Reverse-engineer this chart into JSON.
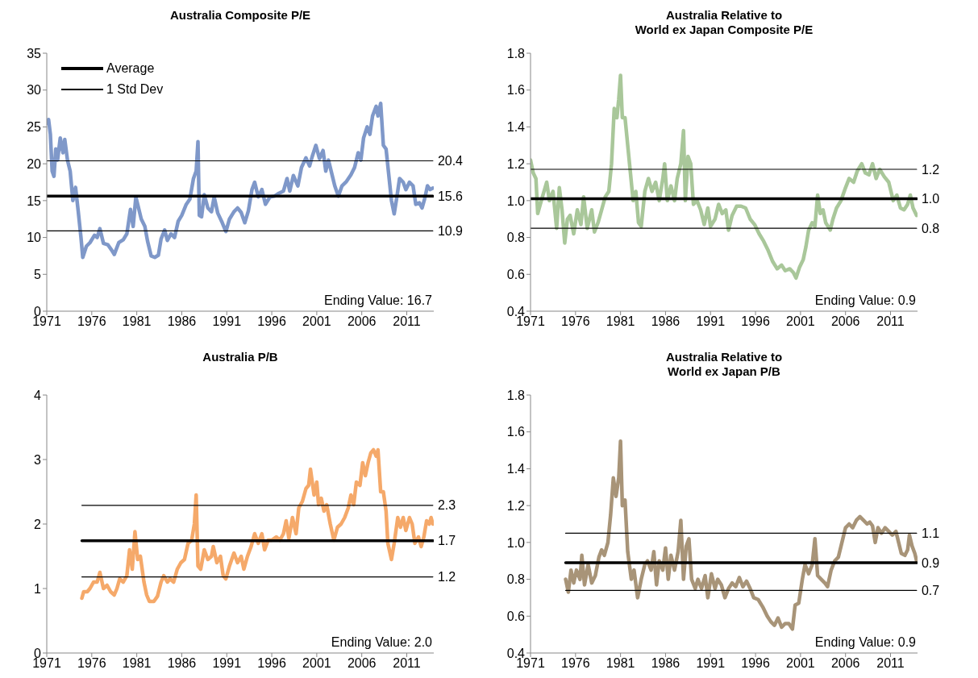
{
  "chart_data": [
    {
      "type": "line",
      "title": "Australia Composite P/E",
      "xlim": [
        1971,
        2014
      ],
      "xticks": [
        1971,
        1976,
        1981,
        1986,
        1991,
        1996,
        2001,
        2006,
        2011
      ],
      "ylim": [
        0,
        35
      ],
      "yticks": [
        0,
        5,
        10,
        15,
        20,
        25,
        30,
        35
      ],
      "legend": "top left",
      "annotations": [
        "Ending Value: 16.7"
      ],
      "series": [
        {
          "color": "#7f98c9",
          "x": [
            1971.0,
            1971.2,
            1971.4,
            1971.6,
            1971.8,
            1972.0,
            1972.2,
            1972.5,
            1972.8,
            1973.0,
            1973.3,
            1973.6,
            1973.9,
            1974.2,
            1974.5,
            1974.8,
            1975.0,
            1975.4,
            1975.8,
            1976.3,
            1976.6,
            1976.9,
            1977.3,
            1977.8,
            1978.2,
            1978.5,
            1979.0,
            1979.5,
            1979.9,
            1980.3,
            1980.6,
            1980.9,
            1981.2,
            1981.5,
            1981.9,
            1982.2,
            1982.6,
            1983.0,
            1983.4,
            1983.7,
            1984.1,
            1984.4,
            1984.8,
            1985.2,
            1985.6,
            1986.0,
            1986.5,
            1986.9,
            1987.3,
            1987.6,
            1987.8,
            1987.95,
            1988.2,
            1988.5,
            1988.9,
            1989.3,
            1989.6,
            1990.0,
            1990.5,
            1990.9,
            1991.3,
            1991.8,
            1992.2,
            1992.6,
            1993.0,
            1993.4,
            1993.8,
            1994.1,
            1994.5,
            1994.9,
            1995.3,
            1995.8,
            1996.3,
            1996.8,
            1997.3,
            1997.7,
            1998.0,
            1998.4,
            1998.9,
            1999.3,
            1999.8,
            2000.2,
            2000.5,
            2000.9,
            2001.3,
            2001.7,
            2002.0,
            2002.3,
            2002.7,
            2003.0,
            2003.4,
            2003.8,
            2004.3,
            2004.8,
            2005.2,
            2005.6,
            2005.9,
            2006.2,
            2006.6,
            2006.9,
            2007.2,
            2007.6,
            2007.8,
            2008.1,
            2008.4,
            2008.7,
            2009.0,
            2009.3,
            2009.6,
            2009.9,
            2010.2,
            2010.6,
            2010.9,
            2011.3,
            2011.7,
            2012.0,
            2012.4,
            2012.7,
            2013.0,
            2013.3,
            2013.6,
            2013.9
          ],
          "values": [
            25.5,
            26,
            24,
            19,
            18.3,
            22,
            20.5,
            23.5,
            21.5,
            23.3,
            20.5,
            19,
            15,
            16.8,
            13.5,
            10,
            7.3,
            8.8,
            9.3,
            10.3,
            10,
            11.2,
            9.2,
            9,
            8.3,
            7.7,
            9.3,
            9.7,
            10.5,
            13.8,
            11.5,
            15.5,
            14,
            12.5,
            11.5,
            9.5,
            7.5,
            7.3,
            7.6,
            9.8,
            11,
            9.6,
            10.5,
            10,
            12.2,
            13,
            14.5,
            15.2,
            18,
            19,
            23,
            13,
            12.8,
            15.8,
            14,
            13.5,
            15.5,
            13.3,
            12,
            10.8,
            12.5,
            13.5,
            14,
            13.4,
            12,
            13.6,
            16.5,
            17.5,
            15.5,
            16.5,
            14.5,
            15.5,
            15.6,
            16,
            16.3,
            18,
            16.3,
            18.4,
            17,
            19.5,
            20.8,
            19.7,
            21,
            22.5,
            20.7,
            21.8,
            19,
            20.5,
            18.5,
            17,
            15.6,
            17,
            17.6,
            18.5,
            19.5,
            21.5,
            20.5,
            23.5,
            25,
            24,
            26.5,
            27.8,
            26.5,
            28.2,
            22.5,
            22,
            18.5,
            15,
            13.2,
            15.5,
            18,
            17.5,
            16.5,
            17.5,
            17,
            14.5,
            14.7,
            14,
            15.3,
            17,
            16.5,
            16.7
          ]
        },
        {
          "name": "Average",
          "color": "#000000",
          "x": [
            1971,
            2013.9
          ],
          "values": [
            15.6,
            15.6
          ],
          "value_labels": [
            null,
            "15.6"
          ]
        },
        {
          "name": "1 Std Dev",
          "color": "#000000",
          "x": [
            1971,
            2013.9
          ],
          "values": [
            20.4,
            20.4
          ],
          "value_labels": [
            null,
            "20.4"
          ]
        },
        {
          "color": "#000000",
          "x": [
            1971,
            2013.9
          ],
          "values": [
            10.9,
            10.9
          ],
          "value_labels": [
            null,
            "10.9"
          ]
        }
      ]
    },
    {
      "type": "line",
      "title": "Australia Relative to\nWorld ex Japan Composite P/E",
      "xlim": [
        1971,
        2014
      ],
      "xticks": [
        1971,
        1976,
        1981,
        1986,
        1991,
        1996,
        2001,
        2006,
        2011
      ],
      "ylim": [
        0.4,
        1.8
      ],
      "yticks": [
        {
          "value": 0.4,
          "label": "0.4"
        },
        {
          "value": 0.6,
          "label": "0.6"
        },
        {
          "value": 0.8,
          "label": "0.8"
        },
        {
          "value": 1.0,
          "label": "1.0"
        },
        {
          "value": 1.2,
          "label": "1.2"
        },
        {
          "value": 1.4,
          "label": "1.4"
        },
        {
          "value": 1.6,
          "label": "1.6"
        },
        {
          "value": 1.8,
          "label": "1.8"
        }
      ],
      "annotations": [
        "Ending Value: 0.9"
      ],
      "series": [
        {
          "color": "#a9c79a",
          "x": [
            1971.0,
            1971.3,
            1971.6,
            1971.8,
            1972.2,
            1972.5,
            1972.8,
            1973.1,
            1973.5,
            1973.9,
            1974.2,
            1974.5,
            1974.8,
            1975.1,
            1975.4,
            1975.8,
            1976.2,
            1976.6,
            1976.9,
            1977.3,
            1977.8,
            1978.1,
            1978.5,
            1978.9,
            1979.3,
            1979.7,
            1980.0,
            1980.3,
            1980.6,
            1980.8,
            1981.0,
            1981.2,
            1981.5,
            1981.8,
            1982.1,
            1982.4,
            1982.7,
            1983.0,
            1983.3,
            1983.7,
            1984.1,
            1984.5,
            1984.9,
            1985.3,
            1985.7,
            1985.9,
            1986.2,
            1986.6,
            1987.0,
            1987.3,
            1987.7,
            1988.0,
            1988.2,
            1988.5,
            1988.8,
            1989.1,
            1989.5,
            1989.9,
            1990.3,
            1990.7,
            1991.0,
            1991.5,
            1991.9,
            1992.3,
            1992.7,
            1993.0,
            1993.4,
            1993.9,
            1994.4,
            1994.9,
            1995.4,
            1995.9,
            1996.4,
            1996.9,
            1997.4,
            1997.9,
            1998.4,
            1998.9,
            1999.3,
            1999.8,
            2000.2,
            2000.5,
            2000.9,
            2001.3,
            2001.6,
            2001.9,
            2002.3,
            2002.6,
            2002.9,
            2003.2,
            2003.5,
            2003.8,
            2004.3,
            2004.6,
            2005.0,
            2005.5,
            2006.0,
            2006.4,
            2006.9,
            2007.3,
            2007.8,
            2008.2,
            2008.6,
            2009.0,
            2009.4,
            2009.8,
            2010.3,
            2010.8,
            2011.3,
            2011.7,
            2012.1,
            2012.5,
            2012.9,
            2013.2,
            2013.5,
            2013.9
          ],
          "values": [
            1.22,
            1.15,
            1.12,
            0.93,
            1.0,
            1.05,
            1.1,
            1.0,
            1.05,
            0.85,
            1.07,
            0.95,
            0.77,
            0.9,
            0.92,
            0.82,
            0.95,
            0.87,
            1.02,
            0.85,
            0.95,
            0.83,
            0.88,
            0.95,
            1.02,
            1.05,
            1.2,
            1.5,
            1.45,
            1.55,
            1.68,
            1.45,
            1.45,
            1.3,
            1.15,
            1.0,
            1.05,
            0.88,
            0.86,
            1.05,
            1.12,
            1.05,
            1.1,
            1.0,
            1.12,
            1.2,
            1.0,
            1.08,
            1.0,
            1.12,
            1.2,
            1.38,
            1.0,
            1.24,
            1.2,
            0.98,
            1.0,
            0.95,
            0.87,
            0.96,
            0.86,
            0.9,
            0.98,
            0.93,
            0.95,
            0.84,
            0.92,
            0.97,
            0.97,
            0.96,
            0.9,
            0.87,
            0.82,
            0.78,
            0.73,
            0.67,
            0.63,
            0.65,
            0.62,
            0.63,
            0.61,
            0.58,
            0.64,
            0.68,
            0.75,
            0.84,
            0.88,
            0.86,
            1.03,
            0.93,
            0.95,
            0.88,
            0.84,
            0.9,
            0.96,
            1.0,
            1.07,
            1.12,
            1.1,
            1.16,
            1.2,
            1.15,
            1.14,
            1.2,
            1.12,
            1.17,
            1.13,
            1.1,
            1.0,
            1.03,
            0.96,
            0.95,
            0.98,
            1.03,
            0.96,
            0.92
          ]
        },
        {
          "color": "#000000",
          "x": [
            1971,
            2013.9
          ],
          "values": [
            1.01,
            1.01
          ],
          "value_labels": [
            null,
            "1.0"
          ]
        },
        {
          "color": "#000000",
          "x": [
            1971,
            2013.9
          ],
          "values": [
            1.17,
            1.17
          ],
          "value_labels": [
            null,
            "1.2"
          ]
        },
        {
          "color": "#000000",
          "x": [
            1971,
            2013.9
          ],
          "values": [
            0.85,
            0.85
          ],
          "value_labels": [
            null,
            "0.8"
          ]
        }
      ]
    },
    {
      "type": "line",
      "title": "Australia P/B",
      "xlim": [
        1971,
        2014
      ],
      "xticks": [
        1971,
        1976,
        1981,
        1986,
        1991,
        1996,
        2001,
        2006,
        2011
      ],
      "ylim": [
        0,
        4
      ],
      "yticks": [
        0,
        1,
        2,
        3,
        4
      ],
      "annotations": [
        "Ending Value: 2.0"
      ],
      "series": [
        {
          "color": "#f5a96a",
          "x": [
            1974.9,
            1975.1,
            1975.5,
            1975.8,
            1976.2,
            1976.6,
            1976.9,
            1977.3,
            1977.7,
            1978.1,
            1978.5,
            1978.8,
            1979.1,
            1979.5,
            1979.9,
            1980.2,
            1980.5,
            1980.8,
            1981.1,
            1981.4,
            1981.8,
            1982.1,
            1982.4,
            1982.9,
            1983.3,
            1983.7,
            1984.0,
            1984.4,
            1984.7,
            1985.1,
            1985.5,
            1985.9,
            1986.3,
            1986.7,
            1987.1,
            1987.4,
            1987.6,
            1987.8,
            1988.1,
            1988.5,
            1988.9,
            1989.3,
            1989.5,
            1989.9,
            1990.3,
            1990.6,
            1990.9,
            1991.3,
            1991.8,
            1992.2,
            1992.6,
            1992.9,
            1993.3,
            1993.7,
            1994.1,
            1994.5,
            1994.9,
            1995.2,
            1995.6,
            1996.0,
            1996.5,
            1996.9,
            1997.3,
            1997.6,
            1997.9,
            1998.3,
            1998.7,
            1999.0,
            1999.4,
            1999.8,
            2000.1,
            2000.3,
            2000.7,
            2001.0,
            2001.2,
            2001.5,
            2001.8,
            2002.1,
            2002.5,
            2002.9,
            2003.3,
            2003.7,
            2004.1,
            2004.5,
            2004.8,
            2005.1,
            2005.4,
            2005.8,
            2006.1,
            2006.4,
            2006.7,
            2007.0,
            2007.3,
            2007.6,
            2007.8,
            2008.1,
            2008.4,
            2008.7,
            2008.9,
            2009.3,
            2009.6,
            2010.0,
            2010.3,
            2010.6,
            2010.9,
            2011.3,
            2011.6,
            2011.9,
            2012.3,
            2012.6,
            2012.9,
            2013.2,
            2013.5,
            2013.7,
            2013.9
          ],
          "values": [
            0.85,
            0.95,
            0.95,
            1.0,
            1.1,
            1.1,
            1.25,
            1.0,
            1.05,
            0.95,
            0.9,
            1.0,
            1.15,
            1.1,
            1.2,
            1.6,
            1.3,
            1.88,
            1.45,
            1.5,
            1.1,
            0.9,
            0.8,
            0.8,
            0.88,
            1.1,
            1.2,
            1.1,
            1.15,
            1.1,
            1.3,
            1.4,
            1.45,
            1.7,
            1.75,
            2.0,
            2.45,
            1.35,
            1.3,
            1.6,
            1.45,
            1.5,
            1.65,
            1.4,
            1.5,
            1.2,
            1.15,
            1.35,
            1.55,
            1.4,
            1.5,
            1.3,
            1.5,
            1.65,
            1.85,
            1.7,
            1.85,
            1.6,
            1.75,
            1.75,
            1.8,
            1.75,
            1.85,
            2.05,
            1.78,
            2.1,
            1.85,
            2.25,
            2.35,
            2.55,
            2.6,
            2.85,
            2.45,
            2.65,
            2.3,
            2.4,
            2.2,
            2.3,
            2.0,
            1.75,
            1.95,
            2.0,
            2.1,
            2.25,
            2.45,
            2.3,
            2.65,
            2.6,
            2.95,
            2.75,
            2.95,
            3.1,
            3.15,
            3.05,
            3.15,
            2.5,
            2.5,
            2.2,
            1.7,
            1.45,
            1.7,
            2.1,
            1.95,
            2.1,
            1.9,
            2.1,
            2.0,
            1.7,
            1.8,
            1.65,
            1.8,
            2.05,
            2.0,
            2.1,
            2.0
          ]
        },
        {
          "color": "#000000",
          "x": [
            1974.9,
            2013.9
          ],
          "values": [
            1.74,
            1.74
          ],
          "value_labels": [
            null,
            "1.7"
          ]
        },
        {
          "color": "#000000",
          "x": [
            1974.9,
            2013.9
          ],
          "values": [
            2.29,
            2.29
          ],
          "value_labels": [
            null,
            "2.3"
          ]
        },
        {
          "color": "#000000",
          "x": [
            1974.9,
            2013.9
          ],
          "values": [
            1.18,
            1.18
          ],
          "value_labels": [
            null,
            "1.2"
          ]
        }
      ]
    },
    {
      "type": "line",
      "title": "Australia Relative to\nWorld ex Japan P/B",
      "xlim": [
        1971,
        2014
      ],
      "xticks": [
        1971,
        1976,
        1981,
        1986,
        1991,
        1996,
        2001,
        2006,
        2011
      ],
      "ylim": [
        0.4,
        1.8
      ],
      "yticks": [
        {
          "value": 0.4,
          "label": "0.4"
        },
        {
          "value": 0.6,
          "label": "0.6"
        },
        {
          "value": 0.8,
          "label": "0.8"
        },
        {
          "value": 1.0,
          "label": "1.0"
        },
        {
          "value": 1.2,
          "label": "1.2"
        },
        {
          "value": 1.4,
          "label": "1.4"
        },
        {
          "value": 1.6,
          "label": "1.6"
        },
        {
          "value": 1.8,
          "label": "1.8"
        }
      ],
      "annotations": [
        "Ending Value: 0.9"
      ],
      "series": [
        {
          "color": "#a89478",
          "x": [
            1974.9,
            1975.2,
            1975.5,
            1975.8,
            1976.1,
            1976.5,
            1976.7,
            1977.0,
            1977.4,
            1977.8,
            1978.2,
            1978.6,
            1978.9,
            1979.2,
            1979.6,
            1979.9,
            1980.2,
            1980.5,
            1980.8,
            1981.0,
            1981.2,
            1981.5,
            1981.8,
            1982.2,
            1982.5,
            1982.9,
            1983.3,
            1983.7,
            1984.0,
            1984.4,
            1984.7,
            1985.0,
            1985.3,
            1985.7,
            1986.0,
            1986.3,
            1986.6,
            1987.0,
            1987.4,
            1987.7,
            1988.0,
            1988.3,
            1988.6,
            1988.9,
            1989.3,
            1989.6,
            1990.0,
            1990.4,
            1990.7,
            1991.1,
            1991.5,
            1991.8,
            1992.2,
            1992.6,
            1993.0,
            1993.4,
            1993.8,
            1994.2,
            1994.6,
            1995.0,
            1995.4,
            1995.8,
            1996.3,
            1996.8,
            1997.3,
            1997.7,
            1998.1,
            1998.5,
            1998.9,
            1999.3,
            1999.7,
            2000.1,
            2000.4,
            2000.8,
            2001.2,
            2001.5,
            2001.9,
            2002.3,
            2002.6,
            2002.9,
            2003.3,
            2003.7,
            2004.0,
            2004.4,
            2004.8,
            2005.2,
            2005.6,
            2006.0,
            2006.4,
            2006.8,
            2007.2,
            2007.6,
            2008.0,
            2008.4,
            2008.7,
            2009.0,
            2009.3,
            2009.6,
            2010.0,
            2010.4,
            2010.8,
            2011.2,
            2011.6,
            2011.9,
            2012.2,
            2012.6,
            2012.9,
            2013.1,
            2013.4,
            2013.7,
            2013.9
          ],
          "values": [
            0.8,
            0.73,
            0.85,
            0.78,
            0.85,
            0.8,
            0.93,
            0.77,
            0.88,
            0.78,
            0.82,
            0.92,
            0.96,
            0.93,
            1.0,
            1.15,
            1.35,
            1.25,
            1.35,
            1.55,
            1.2,
            1.23,
            0.95,
            0.8,
            0.85,
            0.7,
            0.8,
            0.88,
            0.9,
            0.85,
            0.95,
            0.77,
            0.9,
            0.85,
            0.97,
            0.8,
            0.93,
            0.85,
            0.95,
            1.12,
            0.8,
            0.98,
            1.02,
            0.8,
            0.75,
            0.8,
            0.75,
            0.82,
            0.7,
            0.83,
            0.75,
            0.8,
            0.77,
            0.7,
            0.75,
            0.78,
            0.76,
            0.81,
            0.76,
            0.79,
            0.75,
            0.7,
            0.69,
            0.65,
            0.6,
            0.57,
            0.55,
            0.59,
            0.54,
            0.56,
            0.56,
            0.53,
            0.66,
            0.67,
            0.8,
            0.88,
            0.83,
            0.88,
            1.02,
            0.82,
            0.8,
            0.78,
            0.76,
            0.85,
            0.9,
            0.92,
            1.0,
            1.08,
            1.1,
            1.08,
            1.12,
            1.14,
            1.12,
            1.1,
            1.11,
            1.09,
            1.0,
            1.08,
            1.05,
            1.08,
            1.06,
            1.04,
            1.06,
            1.0,
            0.94,
            0.93,
            0.96,
            1.04,
            0.98,
            0.94,
            0.9
          ]
        },
        {
          "color": "#000000",
          "x": [
            1974.9,
            2013.9
          ],
          "values": [
            0.89,
            0.89
          ],
          "value_labels": [
            null,
            "0.9"
          ]
        },
        {
          "color": "#000000",
          "x": [
            1974.9,
            2013.9
          ],
          "values": [
            1.05,
            1.05
          ],
          "value_labels": [
            null,
            "1.1"
          ]
        },
        {
          "color": "#000000",
          "x": [
            1974.9,
            2013.9
          ],
          "values": [
            0.74,
            0.74
          ],
          "value_labels": [
            null,
            "0.7"
          ]
        }
      ]
    }
  ]
}
